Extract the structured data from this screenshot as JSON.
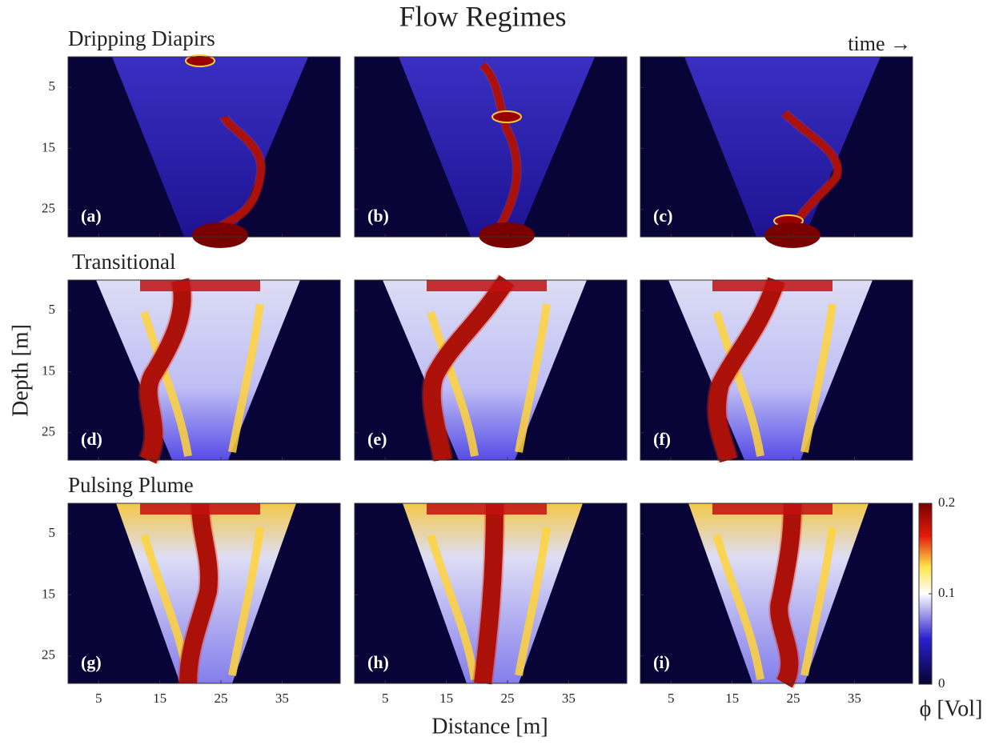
{
  "chart_data": {
    "type": "heatmap",
    "title": "Flow Regimes",
    "time_label": "time →",
    "x_label": "Distance [m]",
    "y_label": "Depth [m]",
    "xlim": [
      0,
      44.5
    ],
    "xticks": [
      5,
      15,
      25,
      35
    ],
    "ylim": [
      0,
      29.5
    ],
    "yticks": [
      5,
      15,
      25
    ],
    "rows": [
      {
        "title": "Dripping Diapirs",
        "panels": [
          "(a)",
          "(b)",
          "(c)"
        ]
      },
      {
        "title": "Transitional",
        "panels": [
          "(d)",
          "(e)",
          "(f)"
        ]
      },
      {
        "title": "Pulsing Plume",
        "panels": [
          "(g)",
          "(h)",
          "(i)"
        ]
      }
    ],
    "colorbar": {
      "label": "ϕ [Vol]",
      "lim": [
        0,
        0.2
      ],
      "ticks": [
        0,
        0.1,
        0.2
      ]
    }
  }
}
